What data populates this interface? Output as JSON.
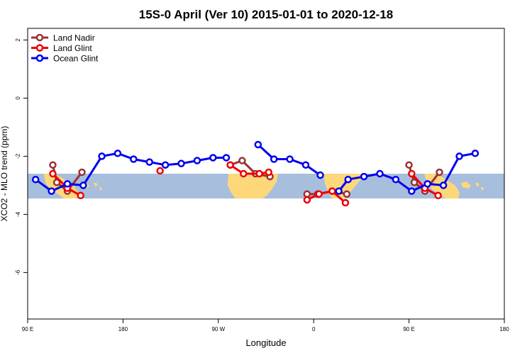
{
  "chart_data": {
    "type": "line",
    "title": "15S-0 April (Ver 10)   2015-01-01 to 2020-12-18",
    "xlabel": "Longitude",
    "ylabel": "XCO2 - MLO trend (ppm)",
    "xlim": [
      90,
      450
    ],
    "ylim": [
      -7.6,
      2.4
    ],
    "x_ticks": [
      {
        "value": 90,
        "label": "90 E"
      },
      {
        "value": 162,
        "label": "180"
      },
      {
        "value": 234,
        "label": "90 W"
      },
      {
        "value": 306,
        "label": "0"
      },
      {
        "value": 378,
        "label": "90 E"
      },
      {
        "value": 450,
        "label": "180"
      }
    ],
    "y_ticks": [
      {
        "value": 2,
        "label": "2"
      },
      {
        "value": 0,
        "label": "0"
      },
      {
        "value": -2,
        "label": "-2"
      },
      {
        "value": -4,
        "label": "-4"
      },
      {
        "value": -6,
        "label": "-6"
      }
    ],
    "map_band": {
      "lat_min": -15,
      "lat_max": 0,
      "ocean_color": "#a7bedd",
      "land_color": "#fcd87b"
    },
    "legend_position": "top-left",
    "series": [
      {
        "name": "Land Nadir",
        "color": "#993333",
        "segments": [
          [
            [
              109,
              -2.3
            ],
            [
              112,
              -2.9
            ],
            [
              120,
              -3.2
            ],
            [
              131,
              -2.55
            ]
          ],
          [
            [
              243,
              -2.3
            ],
            [
              252,
              -2.15
            ],
            [
              262,
              -2.6
            ],
            [
              273,
              -2.7
            ]
          ],
          [
            [
              301,
              -3.3
            ],
            [
              309,
              -3.3
            ],
            [
              320,
              -3.2
            ],
            [
              331,
              -3.3
            ]
          ],
          [
            [
              378,
              -2.3
            ],
            [
              382,
              -2.9
            ],
            [
              390,
              -3.2
            ],
            [
              401,
              -2.55
            ]
          ]
        ]
      },
      {
        "name": "Land Glint",
        "color": "#ee0000",
        "segments": [
          [
            [
              109,
              -2.6
            ],
            [
              120,
              -3.1
            ],
            [
              130,
              -3.35
            ]
          ],
          [
            [
              190,
              -2.5
            ]
          ],
          [
            [
              243,
              -2.3
            ],
            [
              253,
              -2.6
            ],
            [
              265,
              -2.6
            ],
            [
              272,
              -2.55
            ]
          ],
          [
            [
              301,
              -3.5
            ],
            [
              310,
              -3.3
            ],
            [
              320,
              -3.2
            ],
            [
              330,
              -3.6
            ]
          ],
          [
            [
              380,
              -2.6
            ],
            [
              390,
              -3.1
            ],
            [
              400,
              -3.35
            ]
          ]
        ]
      },
      {
        "name": "Ocean Glint",
        "color": "#0000ee",
        "segments": [
          [
            [
              96,
              -2.8
            ],
            [
              108,
              -3.2
            ],
            [
              120,
              -2.95
            ],
            [
              132,
              -3.0
            ],
            [
              146,
              -2.0
            ],
            [
              158,
              -1.9
            ],
            [
              170,
              -2.1
            ],
            [
              182,
              -2.2
            ],
            [
              194,
              -2.3
            ],
            [
              206,
              -2.25
            ],
            [
              218,
              -2.15
            ],
            [
              230,
              -2.05
            ],
            [
              240,
              -2.05
            ]
          ],
          [
            [
              264,
              -1.6
            ],
            [
              276,
              -2.1
            ],
            [
              288,
              -2.1
            ],
            [
              300,
              -2.3
            ],
            [
              311,
              -2.65
            ]
          ],
          [
            [
              325,
              -3.2
            ],
            [
              332,
              -2.8
            ],
            [
              344,
              -2.7
            ],
            [
              356,
              -2.6
            ],
            [
              368,
              -2.8
            ],
            [
              380,
              -3.2
            ],
            [
              392,
              -2.95
            ],
            [
              404,
              -3.0
            ],
            [
              416,
              -2.0
            ],
            [
              428,
              -1.9
            ]
          ]
        ]
      }
    ]
  }
}
